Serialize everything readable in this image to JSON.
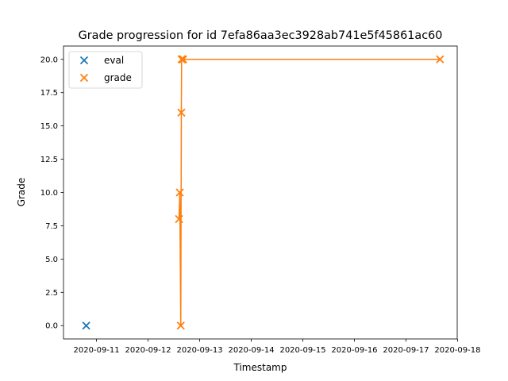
{
  "chart_data": {
    "type": "scatter",
    "title": "Grade progression for id 7efa86aa3ec3928ab741e5f45861ac60",
    "xlabel": "Timestamp",
    "ylabel": "Grade",
    "xlim": [
      "2020-09-10T08:38",
      "2020-09-17T23:50"
    ],
    "ylim": [
      -1.0,
      21.0
    ],
    "x_ticks": [
      "2020-09-11",
      "2020-09-12",
      "2020-09-13",
      "2020-09-14",
      "2020-09-15",
      "2020-09-16",
      "2020-09-17",
      "2020-09-18"
    ],
    "y_ticks": [
      "0.0",
      "2.5",
      "5.0",
      "7.5",
      "10.0",
      "12.5",
      "15.0",
      "17.5",
      "20.0"
    ],
    "legend_position": "upper-left",
    "grid": false,
    "series": [
      {
        "name": "eval",
        "color": "#1f77b4",
        "marker": "x",
        "line": false,
        "points": [
          {
            "x": "2020-09-10T19:12",
            "y": 0
          }
        ]
      },
      {
        "name": "grade",
        "color": "#ff7f0e",
        "marker": "x",
        "line": true,
        "points": [
          {
            "x": "2020-09-12T14:24",
            "y": 8
          },
          {
            "x": "2020-09-12T14:45",
            "y": 10
          },
          {
            "x": "2020-09-12T15:12",
            "y": 0
          },
          {
            "x": "2020-09-12T15:28",
            "y": 16
          },
          {
            "x": "2020-09-12T15:36",
            "y": 20
          },
          {
            "x": "2020-09-12T16:00",
            "y": 20
          },
          {
            "x": "2020-09-12T16:19",
            "y": 20
          },
          {
            "x": "2020-09-17T15:50",
            "y": 20
          }
        ]
      }
    ]
  }
}
